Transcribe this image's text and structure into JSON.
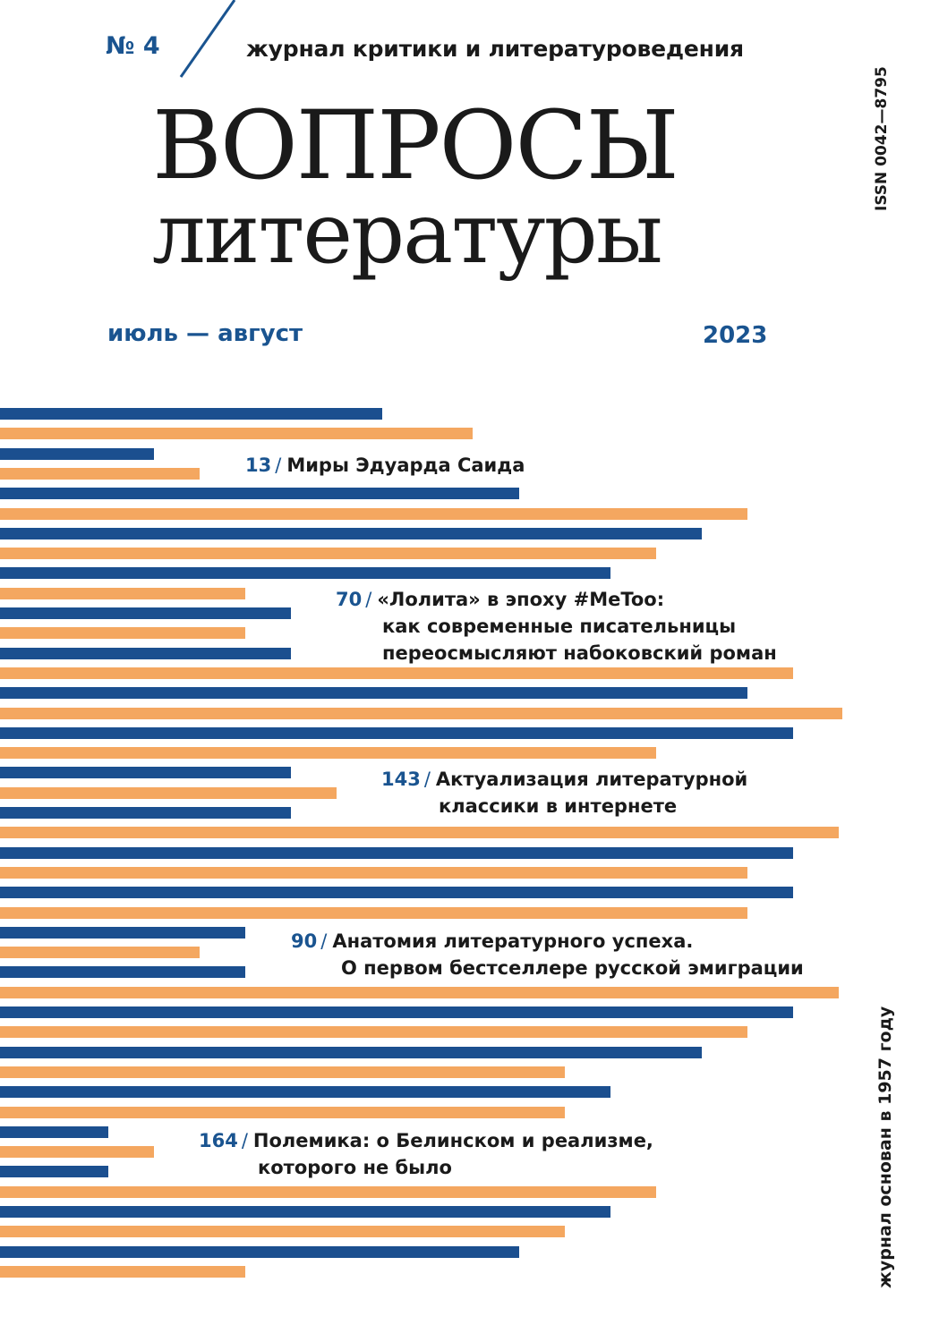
{
  "header": {
    "issue_number": "№ 4",
    "subtitle": "журнал критики и литературоведения",
    "title_line1": "ВОПРОСЫ",
    "title_line2": "литературы",
    "issn": "ISSN 0042—8795",
    "period": "июль — август",
    "year": "2023"
  },
  "founded": "журнал основан в 1957 году",
  "colors": {
    "blue": "#1b4f8f",
    "orange": "#f4a760"
  },
  "toc": [
    {
      "page": "13",
      "lines": [
        "Миры Эдуарда Саида"
      ]
    },
    {
      "page": "70",
      "lines": [
        "«Лолита» в эпоху #MeToo:",
        "как современные писательницы",
        "переосмысляют набоковский роман"
      ]
    },
    {
      "page": "143",
      "lines": [
        "Актуализация литературной",
        "классики в интернете"
      ]
    },
    {
      "page": "90",
      "lines": [
        "Анатомия литературного успеха.",
        "О первом бестселлере русской эмиграции"
      ]
    },
    {
      "page": "164",
      "lines": [
        "Полемика: о Белинском и реализме,",
        "которого не было"
      ]
    }
  ]
}
